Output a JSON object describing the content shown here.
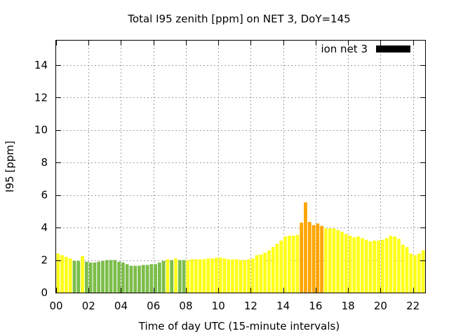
{
  "chart_data": {
    "type": "bar",
    "title": "Total I95 zenith [ppm] on NET 3, DoY=145",
    "xlabel": "Time of day UTC (15-minute intervals)",
    "ylabel": "I95 [ppm]",
    "xlim": [
      0,
      22.75
    ],
    "ylim": [
      0,
      15.5
    ],
    "x_ticks": [
      0,
      2,
      4,
      6,
      8,
      10,
      12,
      14,
      16,
      18,
      20,
      22
    ],
    "x_tick_labels": [
      "00",
      "02",
      "04",
      "06",
      "08",
      "10",
      "12",
      "14",
      "16",
      "18",
      "20",
      "22"
    ],
    "y_ticks": [
      0,
      2,
      4,
      6,
      8,
      10,
      12,
      14
    ],
    "y_tick_labels": [
      "0",
      "2",
      "4",
      "6",
      "8",
      "10",
      "12",
      "14"
    ],
    "grid": true,
    "legend": {
      "label": "ion net 3",
      "color": "#000000",
      "placement": "top-right"
    },
    "bar_interval_hours": 0.25,
    "colors": {
      "green": "#7cbd4a",
      "yellow": "#ffff1a",
      "orange": "#ffa500"
    },
    "series": [
      {
        "x": [
          0.25,
          0.5,
          0.75,
          1.0,
          1.25,
          1.5,
          1.75,
          2.0,
          2.25,
          2.5,
          2.75,
          3.0,
          3.25,
          3.5,
          3.75,
          4.0,
          4.25,
          4.5,
          4.75,
          5.0,
          5.25,
          5.5,
          5.75,
          6.0,
          6.25,
          6.5,
          6.75,
          7.0,
          7.25,
          7.5,
          7.75,
          8.0,
          8.25,
          8.5,
          8.75,
          9.0,
          9.25,
          9.5,
          9.75,
          10.0,
          10.25,
          10.5,
          10.75,
          11.0,
          11.25,
          11.5,
          11.75,
          12.0,
          12.25,
          12.5,
          12.75,
          13.0,
          13.25,
          13.5,
          13.75,
          14.0,
          14.25,
          14.5,
          14.75,
          15.0,
          15.25,
          15.5,
          15.75,
          16.0,
          16.25,
          16.5,
          16.75,
          17.0,
          17.25,
          17.5,
          17.75,
          18.0,
          18.25,
          18.5,
          18.75,
          19.0,
          19.25,
          19.5,
          19.75,
          20.0,
          20.25,
          20.5,
          20.75,
          21.0,
          21.25,
          21.5,
          21.75,
          22.0,
          22.25,
          22.5,
          22.75
        ],
        "values": [
          2.4,
          2.3,
          2.2,
          2.1,
          1.95,
          1.95,
          2.25,
          1.9,
          1.85,
          1.85,
          1.9,
          1.95,
          2.0,
          2.0,
          2.0,
          1.9,
          1.85,
          1.75,
          1.65,
          1.65,
          1.65,
          1.7,
          1.7,
          1.75,
          1.75,
          1.85,
          1.95,
          2.05,
          2.0,
          2.1,
          2.0,
          2.0,
          2.0,
          2.05,
          2.05,
          2.05,
          2.05,
          2.1,
          2.1,
          2.15,
          2.15,
          2.1,
          2.05,
          2.05,
          2.05,
          2.0,
          2.0,
          2.05,
          2.1,
          2.3,
          2.35,
          2.45,
          2.6,
          2.8,
          3.0,
          3.2,
          3.45,
          3.5,
          3.5,
          3.55,
          4.3,
          5.55,
          4.35,
          4.15,
          4.25,
          4.1,
          3.95,
          3.95,
          3.95,
          3.85,
          3.75,
          3.6,
          3.5,
          3.4,
          3.45,
          3.35,
          3.25,
          3.15,
          3.2,
          3.2,
          3.25,
          3.35,
          3.5,
          3.45,
          3.3,
          2.95,
          2.8,
          2.4,
          2.3,
          2.4,
          2.6
        ],
        "colors": [
          "yellow",
          "yellow",
          "yellow",
          "yellow",
          "green",
          "green",
          "yellow",
          "green",
          "green",
          "green",
          "green",
          "green",
          "green",
          "green",
          "green",
          "green",
          "green",
          "green",
          "green",
          "green",
          "green",
          "green",
          "green",
          "green",
          "green",
          "green",
          "green",
          "yellow",
          "green",
          "yellow",
          "green",
          "green",
          "yellow",
          "yellow",
          "yellow",
          "yellow",
          "yellow",
          "yellow",
          "yellow",
          "yellow",
          "yellow",
          "yellow",
          "yellow",
          "yellow",
          "yellow",
          "yellow",
          "yellow",
          "yellow",
          "yellow",
          "yellow",
          "yellow",
          "yellow",
          "yellow",
          "yellow",
          "yellow",
          "yellow",
          "yellow",
          "yellow",
          "yellow",
          "yellow",
          "orange",
          "orange",
          "orange",
          "orange",
          "orange",
          "orange",
          "yellow",
          "yellow",
          "yellow",
          "yellow",
          "yellow",
          "yellow",
          "yellow",
          "yellow",
          "yellow",
          "yellow",
          "yellow",
          "yellow",
          "yellow",
          "yellow",
          "yellow",
          "yellow",
          "yellow",
          "yellow",
          "yellow",
          "yellow",
          "yellow",
          "yellow",
          "yellow",
          "yellow",
          "yellow"
        ]
      }
    ]
  }
}
